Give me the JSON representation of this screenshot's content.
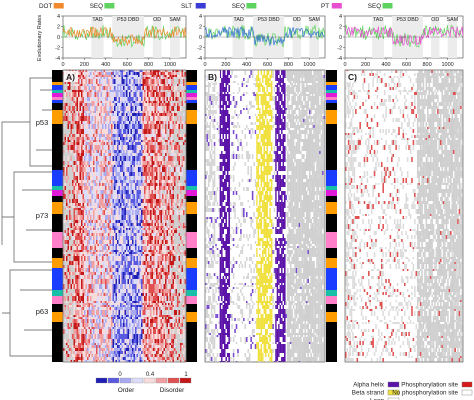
{
  "rates_panel": {
    "ylabel": "Evolutionary Rates",
    "yticks": [
      "4",
      "2",
      "0",
      "-2",
      "-4"
    ],
    "xticks": [
      "0",
      "200",
      "400",
      "600",
      "800",
      "1000"
    ],
    "domains": [
      "TAD",
      "P53 DBD",
      "OD",
      "SAM"
    ]
  },
  "panels": [
    {
      "letter": "A)",
      "legend": [
        {
          "label": "DOT",
          "color": "#f08a2c"
        },
        {
          "label": "SEQ",
          "color": "#5fd35f"
        }
      ],
      "track_color": "#f08a2c"
    },
    {
      "letter": "B)",
      "legend": [
        {
          "label": "SLT",
          "color": "#3b3bd6"
        },
        {
          "label": "SEQ",
          "color": "#5fd35f"
        }
      ],
      "track_color": "#2f6fd0"
    },
    {
      "letter": "C)",
      "legend": [
        {
          "label": "PT",
          "color": "#e84ed0"
        },
        {
          "label": "SEQ",
          "color": "#5fd35f"
        }
      ],
      "track_color": "#e84ed0"
    }
  ],
  "families": [
    "p53",
    "p73",
    "p63"
  ],
  "order_legend": {
    "ticks": [
      "0",
      "0.4",
      "1"
    ],
    "labels": [
      "Order",
      "Disorder"
    ],
    "colors": [
      "#1f1fb4",
      "#5a5ae0",
      "#a9a9f0",
      "#dcdcf8",
      "#f8dcdc",
      "#f0a0a0",
      "#e05050",
      "#c41818"
    ]
  },
  "structure_legend": [
    {
      "label": "Alpha helix",
      "color": "#5b12a8"
    },
    {
      "label": "Beta strand",
      "color": "#f0e040"
    },
    {
      "label": "Loop",
      "color": "#ffffff"
    }
  ],
  "phospho_legend": [
    {
      "label": "Phosphorylation site",
      "color": "#d81818"
    },
    {
      "label": "No phosphorylation site",
      "color": "#ffffff"
    }
  ]
}
